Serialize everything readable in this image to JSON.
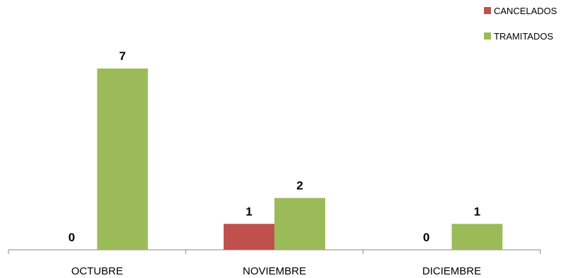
{
  "chart_data": {
    "type": "bar",
    "title": "",
    "xlabel": "",
    "ylabel": "",
    "categories": [
      "OCTUBRE",
      "NOVIEMBRE",
      "DICIEMBRE"
    ],
    "series": [
      {
        "name": "CANCELADOS",
        "values": [
          0,
          1,
          0
        ],
        "color": "#c0504d"
      },
      {
        "name": "TRAMITADOS",
        "values": [
          7,
          2,
          1
        ],
        "color": "#9bbb59"
      }
    ],
    "ylim": [
      0,
      7
    ],
    "grid": false,
    "legend_position": "top-right",
    "data_labels": true
  }
}
